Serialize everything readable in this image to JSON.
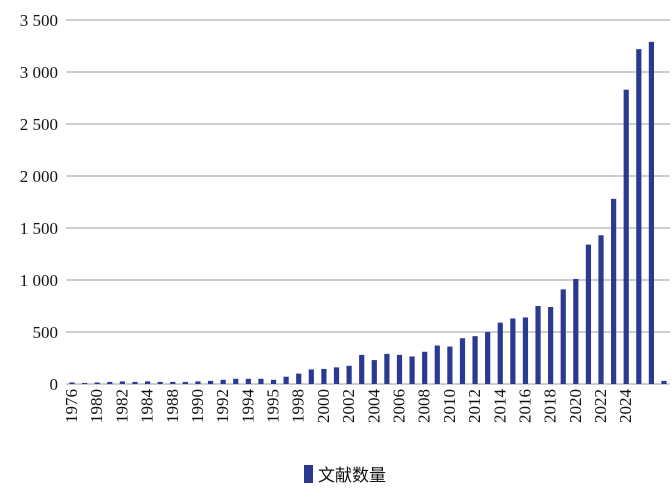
{
  "chart_data": {
    "type": "bar",
    "categories": [
      "1976",
      null,
      "1980",
      null,
      "1982",
      null,
      "1984",
      null,
      "1988",
      null,
      "1990",
      null,
      "1992",
      null,
      "1994",
      null,
      "1995",
      null,
      "1998",
      null,
      "2000",
      null,
      "2002",
      null,
      "2004",
      null,
      "2006",
      null,
      "2008",
      null,
      "2010",
      null,
      "2012",
      null,
      "2014",
      null,
      "2016",
      null,
      "2018",
      null,
      "2020",
      null,
      "2022",
      null,
      "2024",
      null,
      null,
      null
    ],
    "series": [
      {
        "name": "文献数量",
        "color": "#2b3990",
        "values": [
          15,
          10,
          15,
          20,
          25,
          20,
          25,
          20,
          20,
          20,
          25,
          30,
          40,
          50,
          50,
          50,
          40,
          70,
          100,
          140,
          145,
          160,
          175,
          280,
          230,
          290,
          280,
          265,
          310,
          370,
          360,
          440,
          460,
          500,
          590,
          630,
          640,
          750,
          740,
          910,
          1010,
          1340,
          1430,
          1780,
          2830,
          3220,
          3290,
          30
        ]
      }
    ],
    "ylim": [
      0,
      3500
    ],
    "yticks": [
      0,
      500,
      {
        "value": 1000,
        "label": "1 000"
      },
      {
        "value": 1500,
        "label": "1 500"
      },
      {
        "value": 2000,
        "label": "2 000"
      },
      {
        "value": 2500,
        "label": "2 500"
      },
      {
        "value": 3000,
        "label": "3 000"
      },
      {
        "value": 3500,
        "label": "3 500"
      }
    ],
    "grid": true,
    "legend": "bottom"
  }
}
